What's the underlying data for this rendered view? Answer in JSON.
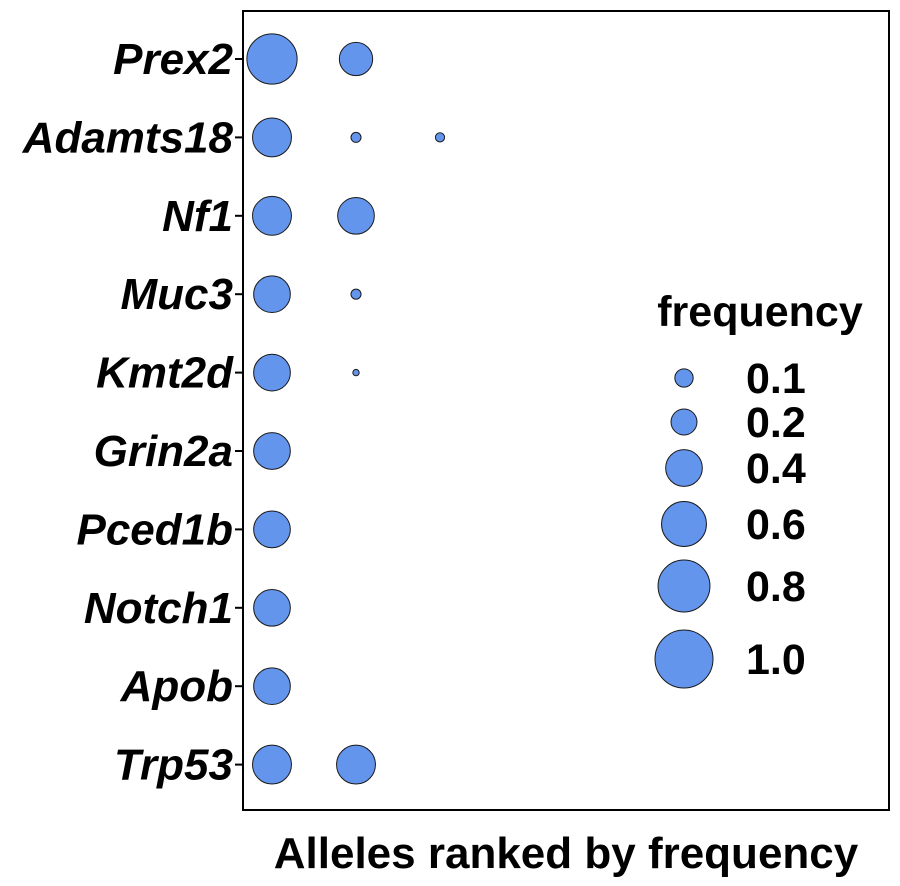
{
  "chart_data": {
    "type": "scatter",
    "xlabel": "Alleles ranked by frequency",
    "ylabel": "",
    "genes": [
      "Prex2",
      "Adamts18",
      "Nf1",
      "Muc3",
      "Kmt2d",
      "Grin2a",
      "Pced1b",
      "Notch1",
      "Apob",
      "Trp53"
    ],
    "x_ranks": [
      1,
      2,
      3
    ],
    "points": [
      {
        "gene": "Prex2",
        "rank": 1,
        "frequency": 0.75
      },
      {
        "gene": "Prex2",
        "rank": 2,
        "frequency": 0.33
      },
      {
        "gene": "Adamts18",
        "rank": 1,
        "frequency": 0.45
      },
      {
        "gene": "Adamts18",
        "rank": 2,
        "frequency": 0.03
      },
      {
        "gene": "Adamts18",
        "rank": 3,
        "frequency": 0.025
      },
      {
        "gene": "Nf1",
        "rank": 1,
        "frequency": 0.45
      },
      {
        "gene": "Nf1",
        "rank": 2,
        "frequency": 0.4
      },
      {
        "gene": "Muc3",
        "rank": 1,
        "frequency": 0.4
      },
      {
        "gene": "Muc3",
        "rank": 2,
        "frequency": 0.03
      },
      {
        "gene": "Kmt2d",
        "rank": 1,
        "frequency": 0.4
      },
      {
        "gene": "Kmt2d",
        "rank": 2,
        "frequency": 0.012
      },
      {
        "gene": "Grin2a",
        "rank": 1,
        "frequency": 0.4
      },
      {
        "gene": "Pced1b",
        "rank": 1,
        "frequency": 0.4
      },
      {
        "gene": "Notch1",
        "rank": 1,
        "frequency": 0.4
      },
      {
        "gene": "Apob",
        "rank": 1,
        "frequency": 0.4
      },
      {
        "gene": "Trp53",
        "rank": 1,
        "frequency": 0.45
      },
      {
        "gene": "Trp53",
        "rank": 2,
        "frequency": 0.45
      }
    ],
    "legend": {
      "title": "frequency",
      "placement": "right",
      "entries": [
        {
          "value": 0.1,
          "label": "0.1"
        },
        {
          "value": 0.2,
          "label": "0.2"
        },
        {
          "value": 0.4,
          "label": "0.4"
        },
        {
          "value": 0.6,
          "label": "0.6"
        },
        {
          "value": 0.8,
          "label": "0.8"
        },
        {
          "value": 1.0,
          "label": "1.0"
        }
      ]
    },
    "colors": {
      "point_fill": "#6495ED",
      "point_stroke": "#1a1a1a",
      "axis": "#000000"
    },
    "grid": false
  }
}
